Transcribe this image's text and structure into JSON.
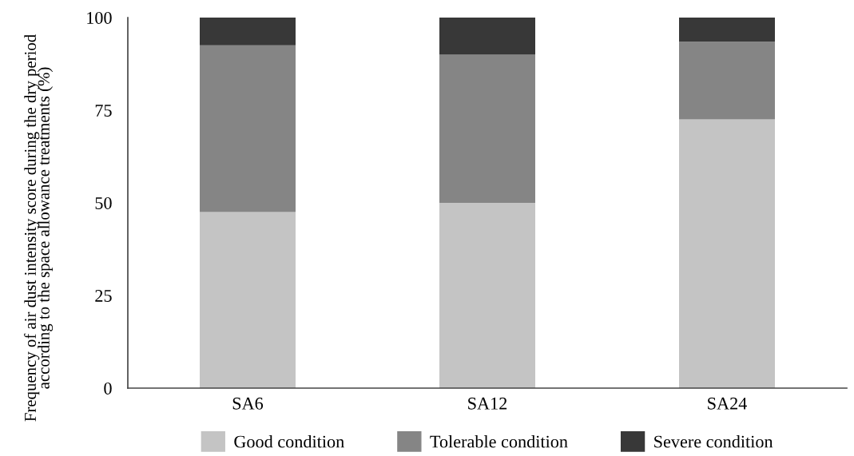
{
  "chart_data": {
    "type": "bar",
    "stacked": true,
    "ylabel": "Frequency of air dust intensity score during the dry period according to the space allowance treatments (%)",
    "categories": [
      "SA6",
      "SA12",
      "SA24"
    ],
    "series": [
      {
        "name": "Good condition",
        "color": "#c4c4c4",
        "values": [
          47.5,
          50,
          72.5
        ]
      },
      {
        "name": "Tolerable condition",
        "color": "#858585",
        "values": [
          45,
          40,
          21
        ]
      },
      {
        "name": "Severe condition",
        "color": "#383838",
        "values": [
          7.5,
          10,
          6.5
        ]
      }
    ],
    "ylim": [
      0,
      100
    ],
    "yticks": [
      0,
      25,
      50,
      75,
      100
    ],
    "grid": false,
    "legend": "bottom"
  }
}
